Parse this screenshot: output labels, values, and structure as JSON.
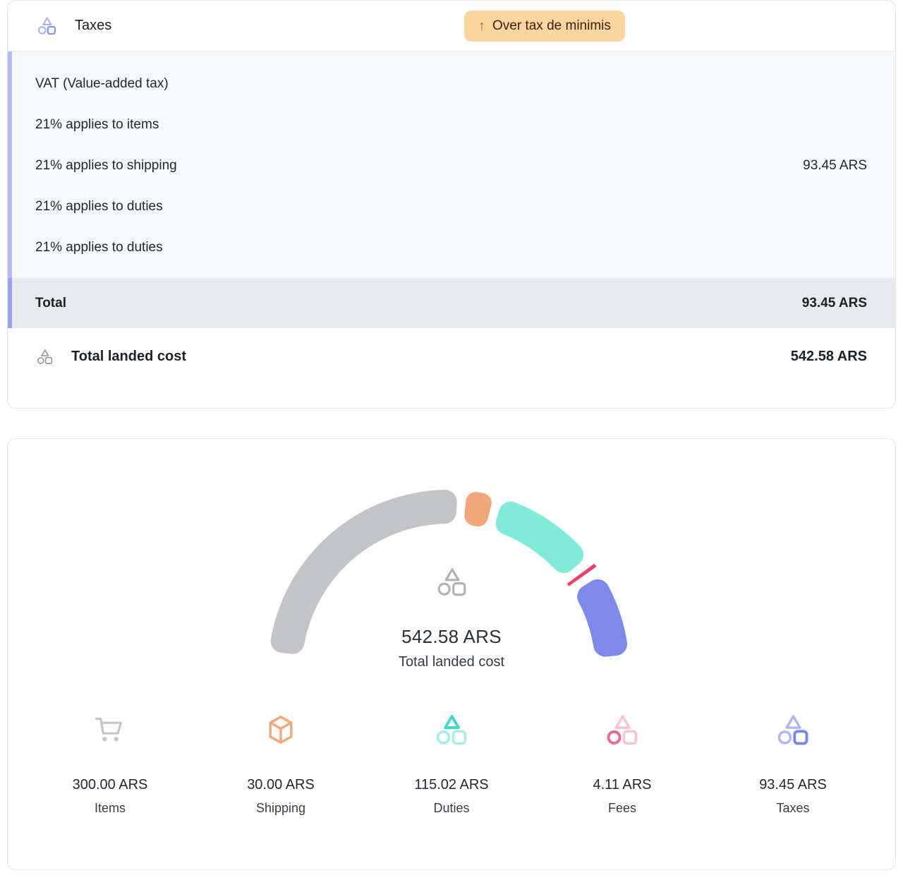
{
  "tax_card": {
    "header": {
      "title": "Taxes",
      "badge": {
        "arrow": "↑",
        "label": "Over tax de minimis",
        "bg": "#fad5a0",
        "text_color": "#3a2008"
      }
    },
    "breakdown": {
      "accent_border": "#b3bcf4",
      "rows": [
        {
          "label": "VAT (Value-added tax)",
          "value": ""
        },
        {
          "label": "21% applies to items",
          "value": ""
        },
        {
          "label": "21% applies to shipping",
          "value": "93.45 ARS"
        },
        {
          "label": "21% applies to duties",
          "value": ""
        },
        {
          "label": "21% applies to duties",
          "value": ""
        }
      ],
      "total": {
        "label": "Total",
        "value": "93.45 ARS",
        "accent_border": "#97a1f0"
      }
    },
    "total_landed_cost": {
      "label": "Total landed cost",
      "value": "542.58 ARS"
    }
  },
  "chart_card": {
    "center": {
      "amount": "542.58 ARS",
      "label": "Total landed cost"
    },
    "legend": [
      {
        "amount": "300.00 ARS",
        "label": "Items",
        "icon": "cart",
        "color": "#c5c6c9"
      },
      {
        "amount": "30.00 ARS",
        "label": "Shipping",
        "icon": "box",
        "color": "#f0a87c"
      },
      {
        "amount": "115.02 ARS",
        "label": "Duties",
        "icon": "logo",
        "accent_shape": "triangle",
        "accent": "#3fd9c8",
        "muted": "#a6efe5"
      },
      {
        "amount": "4.11 ARS",
        "label": "Fees",
        "icon": "logo",
        "accent_shape": "circle",
        "accent": "#f0688f",
        "muted": "#f7c3d0"
      },
      {
        "amount": "93.45 ARS",
        "label": "Taxes",
        "icon": "logo",
        "accent_shape": "square",
        "accent": "#7a86ea",
        "muted": "#afb6f4"
      }
    ]
  },
  "icons": {
    "header_logo": {
      "accent_shape": "square",
      "accent": "#8992ed",
      "muted": "#a8b0f2"
    },
    "landed_logo": {
      "accent_shape": "none",
      "accent": "#989ca3",
      "muted": "#989ca3"
    },
    "center_logo": {
      "accent_shape": "none",
      "accent": "#b2b3b7",
      "muted": "#b2b3b7"
    }
  },
  "chart_data": {
    "type": "pie",
    "variant": "half-donut-gauge",
    "categories": [
      "Items",
      "Shipping",
      "Duties",
      "Fees",
      "Taxes"
    ],
    "values": [
      300.0,
      30.0,
      115.02,
      4.11,
      93.45
    ],
    "unit": "ARS",
    "total": 542.58,
    "colors": [
      "#c3c4c7",
      "#f1a77b",
      "#81eadb",
      "#ee3f66",
      "#7e8ae9"
    ],
    "start_angle_deg": 174,
    "end_angle_deg": 5,
    "gap_deg": 3,
    "center_amount": "542.58 ARS",
    "center_label": "Total landed cost",
    "legend_position": "bottom"
  }
}
